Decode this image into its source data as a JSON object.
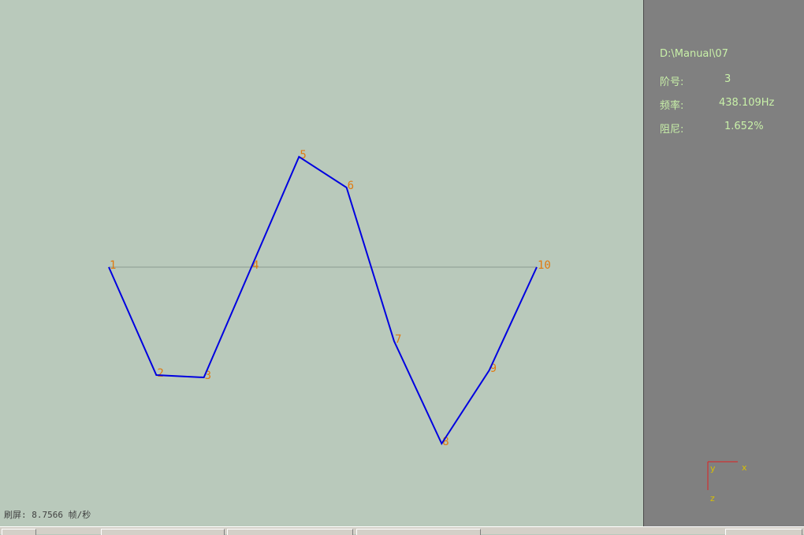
{
  "info": {
    "path": "D:\\Manual\\07",
    "order_label": "阶号:",
    "order_value": "3",
    "freq_label": "频率:",
    "freq_value": "438.109Hz",
    "damp_label": "阻尼:",
    "damp_value": "1.652%"
  },
  "status": {
    "refresh": "刷屏: 8.7566 帧/秒"
  },
  "mode_shape": {
    "nodes": [
      {
        "id": "1",
        "displacement": 0
      },
      {
        "id": "2",
        "displacement": -1.37
      },
      {
        "id": "3",
        "displacement": -1.4
      },
      {
        "id": "4",
        "displacement": 0
      },
      {
        "id": "5",
        "displacement": 1.4
      },
      {
        "id": "6",
        "displacement": 1.01
      },
      {
        "id": "7",
        "displacement": -0.94
      },
      {
        "id": "8",
        "displacement": -2.24
      },
      {
        "id": "9",
        "displacement": -1.31
      },
      {
        "id": "10",
        "displacement": 0
      }
    ],
    "line_color": "#0000e0",
    "baseline_color": "#8c9a90",
    "label_color": "#e07a10"
  },
  "axes": {
    "x_label": "x",
    "y_label": "y",
    "z_label": "z",
    "axis_color": "#e02020",
    "label_color": "#d8c000"
  }
}
